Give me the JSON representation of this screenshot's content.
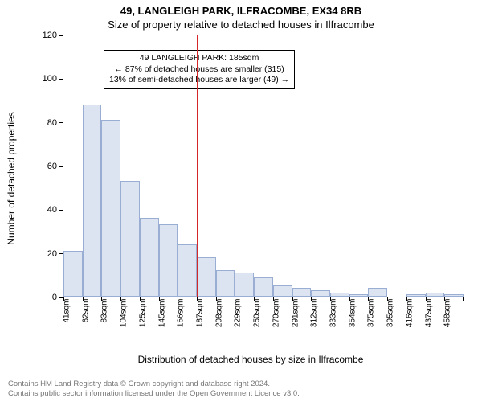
{
  "title": "49, LANGLEIGH PARK, ILFRACOMBE, EX34 8RB",
  "subtitle": "Size of property relative to detached houses in Ilfracombe",
  "chart": {
    "type": "histogram",
    "ylabel": "Number of detached properties",
    "xlabel": "Distribution of detached houses by size in Ilfracombe",
    "ylim": [
      0,
      120
    ],
    "ytick_step": 20,
    "bar_fill": "#dbe4f0",
    "bar_border": "#9aaed4",
    "background_color": "#ffffff",
    "axis_color": "#000000",
    "ref_line_color": "#d62728",
    "ref_line_x_index": 7,
    "x_labels": [
      "41sqm",
      "62sqm",
      "83sqm",
      "104sqm",
      "125sqm",
      "145sqm",
      "166sqm",
      "187sqm",
      "208sqm",
      "229sqm",
      "250sqm",
      "270sqm",
      "291sqm",
      "312sqm",
      "333sqm",
      "354sqm",
      "375sqm",
      "395sqm",
      "416sqm",
      "437sqm",
      "458sqm"
    ],
    "values": [
      21,
      88,
      81,
      53,
      36,
      33,
      24,
      18,
      12,
      11,
      9,
      5,
      4,
      3,
      2,
      1,
      4,
      0,
      1,
      2,
      1
    ],
    "title_fontsize": 13,
    "label_fontsize": 12,
    "tick_fontsize": 11
  },
  "info_box": {
    "line1": "49 LANGLEIGH PARK: 185sqm",
    "line2": "← 87% of detached houses are smaller (315)",
    "line3": "13% of semi-detached houses are larger (49) →",
    "border_color": "#000000",
    "background_color": "#ffffff",
    "fontsize": 10.5
  },
  "footer": {
    "line1": "Contains HM Land Registry data © Crown copyright and database right 2024.",
    "line2": "Contains public sector information licensed under the Open Government Licence v3.0.",
    "color": "#777777",
    "fontsize": 9.5
  }
}
